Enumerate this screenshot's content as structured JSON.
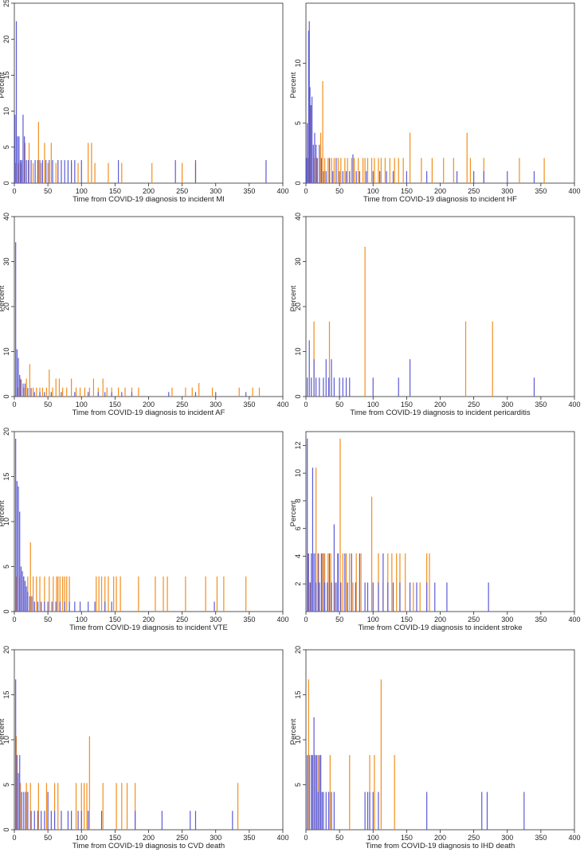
{
  "series_colors": {
    "blue": "#5b5bd6",
    "orange": "#f28e1c"
  },
  "chart_data": [
    {
      "type": "bar",
      "xlabel": "Time from COVID-19 diagnosis to incident MI",
      "ylabel": "Percent",
      "xlim": [
        0,
        400
      ],
      "ylim": [
        0,
        25
      ],
      "xticks": [
        0,
        50,
        100,
        150,
        200,
        250,
        300,
        350,
        400
      ],
      "yticks": [
        0,
        5,
        10,
        15,
        20,
        25
      ],
      "series": [
        {
          "name": "blue",
          "x": [
            1,
            3,
            5,
            7,
            9,
            11,
            13,
            15,
            18,
            21,
            25,
            31,
            35,
            38,
            42,
            47,
            52,
            57,
            65,
            70,
            75,
            80,
            85,
            90,
            100,
            155,
            240,
            270,
            375
          ],
          "values": [
            9.5,
            22.5,
            6.5,
            6.5,
            3.2,
            3.2,
            9.5,
            6.5,
            3.2,
            3.2,
            3.2,
            3.2,
            3.2,
            3.2,
            3.2,
            3.2,
            3.2,
            3.2,
            3.2,
            3.2,
            3.2,
            3.2,
            3.2,
            3.2,
            3.2,
            3.2,
            3.2,
            3.2,
            3.2
          ]
        },
        {
          "name": "orange",
          "x": [
            2,
            6,
            10,
            16,
            22,
            28,
            36,
            40,
            45,
            50,
            55,
            62,
            85,
            95,
            110,
            115,
            120,
            140,
            160,
            205,
            250,
            270
          ],
          "values": [
            2.8,
            2.8,
            2.8,
            5.6,
            5.6,
            2.8,
            8.5,
            2.8,
            5.6,
            2.8,
            5.6,
            2.8,
            2.8,
            2.8,
            5.6,
            5.6,
            2.8,
            2.8,
            2.8,
            2.8,
            2.8,
            2.8
          ]
        }
      ]
    },
    {
      "type": "bar",
      "xlabel": "Time from COVID-19 diagnosis to incident HF",
      "ylabel": "Percent",
      "xlim": [
        0,
        400
      ],
      "ylim": [
        0,
        15
      ],
      "xticks": [
        0,
        50,
        100,
        150,
        200,
        250,
        300,
        350,
        400
      ],
      "yticks": [
        0,
        5,
        10
      ],
      "series": [
        {
          "name": "blue",
          "x": [
            1,
            2,
            4,
            5,
            6,
            7,
            9,
            11,
            13,
            15,
            17,
            20,
            23,
            26,
            30,
            35,
            40,
            45,
            50,
            55,
            60,
            65,
            70,
            75,
            80,
            90,
            100,
            110,
            120,
            130,
            150,
            180,
            225,
            250,
            265,
            300,
            340
          ],
          "values": [
            2.1,
            5,
            12.7,
            13.5,
            8,
            6.5,
            7.2,
            3.2,
            4.2,
            3.2,
            2.1,
            3.2,
            2.1,
            1,
            1,
            2.1,
            1,
            2.1,
            1,
            1,
            1,
            1,
            2.4,
            1,
            1,
            1,
            1,
            1,
            1,
            1,
            1,
            1,
            1,
            1,
            1,
            1,
            1
          ]
        },
        {
          "name": "orange",
          "x": [
            3,
            8,
            12,
            16,
            22,
            25,
            28,
            33,
            38,
            42,
            48,
            52,
            58,
            62,
            68,
            72,
            78,
            85,
            88,
            92,
            98,
            102,
            108,
            112,
            118,
            125,
            132,
            138,
            145,
            155,
            172,
            188,
            205,
            220,
            240,
            245,
            265,
            318,
            355
          ],
          "values": [
            2.1,
            6.5,
            2.1,
            2.1,
            4.2,
            8.5,
            2.1,
            2.1,
            2.1,
            2.1,
            2.1,
            2.1,
            2.1,
            2.1,
            2.1,
            2.1,
            2.1,
            2.1,
            2.1,
            2.1,
            2.1,
            2.1,
            2.1,
            2.1,
            2.1,
            2.1,
            2.1,
            2.1,
            2.1,
            4.2,
            2.1,
            2.1,
            2.1,
            2.1,
            4.2,
            2.1,
            2.1,
            2.1,
            2.1
          ]
        }
      ]
    },
    {
      "type": "bar",
      "xlabel": "Time from COVID-19 diagnosis to incident AF",
      "ylabel": "Percent",
      "xlim": [
        0,
        400
      ],
      "ylim": [
        0,
        40
      ],
      "xticks": [
        0,
        50,
        100,
        150,
        200,
        250,
        300,
        350,
        400
      ],
      "yticks": [
        0,
        10,
        20,
        30,
        40
      ],
      "series": [
        {
          "name": "blue",
          "x": [
            2,
            4,
            6,
            8,
            10,
            13,
            16,
            20,
            25,
            30,
            38,
            45,
            55,
            70,
            90,
            110,
            125,
            135,
            145,
            160,
            175,
            230,
            270,
            300,
            345
          ],
          "values": [
            34.3,
            10.5,
            8.6,
            4.8,
            3.8,
            2.9,
            2.9,
            1.9,
            1.9,
            1,
            1,
            1,
            1,
            1,
            1,
            1,
            1,
            1,
            1,
            1,
            1,
            1,
            1,
            1,
            1
          ]
        },
        {
          "name": "orange",
          "x": [
            5,
            9,
            14,
            18,
            23,
            28,
            33,
            38,
            42,
            48,
            52,
            57,
            62,
            67,
            72,
            78,
            85,
            92,
            98,
            105,
            112,
            118,
            125,
            132,
            138,
            145,
            155,
            165,
            175,
            185,
            235,
            255,
            265,
            275,
            295,
            335,
            355,
            365
          ],
          "values": [
            2,
            4,
            2,
            4,
            7.2,
            2,
            2,
            2,
            2,
            2,
            6,
            2,
            4,
            4,
            2,
            2,
            4,
            2,
            2,
            2,
            2,
            4,
            2,
            4,
            2,
            2,
            2,
            2,
            2,
            2,
            2,
            2,
            2,
            3,
            2,
            2,
            2,
            2
          ]
        }
      ]
    },
    {
      "type": "bar",
      "xlabel": "Time from COVID-19 diagnosis to incident pericarditis",
      "ylabel": "Percent",
      "xlim": [
        0,
        400
      ],
      "ylim": [
        0,
        40
      ],
      "xticks": [
        0,
        50,
        100,
        150,
        200,
        250,
        300,
        350,
        400
      ],
      "yticks": [
        0,
        10,
        20,
        30,
        40
      ],
      "series": [
        {
          "name": "blue",
          "x": [
            2,
            5,
            8,
            12,
            15,
            20,
            26,
            30,
            34,
            38,
            42,
            50,
            55,
            60,
            65,
            100,
            138,
            155,
            340
          ],
          "values": [
            4.2,
            12.5,
            4.2,
            8.3,
            4.2,
            4.2,
            4.2,
            8.3,
            4.2,
            8.3,
            4.2,
            4.2,
            4.2,
            4.2,
            4.2,
            4.2,
            4.2,
            8.3,
            4.2
          ]
        },
        {
          "name": "orange",
          "x": [
            12,
            35,
            88,
            238,
            278
          ],
          "values": [
            16.7,
            16.7,
            33.3,
            16.7,
            16.7
          ]
        }
      ]
    },
    {
      "type": "bar",
      "xlabel": "Time from COVID-19 diagnosis to incident VTE",
      "ylabel": "Percent",
      "xlim": [
        0,
        400
      ],
      "ylim": [
        0,
        20
      ],
      "xticks": [
        0,
        50,
        100,
        150,
        200,
        250,
        300,
        350,
        400
      ],
      "yticks": [
        0,
        5,
        10,
        15,
        20
      ],
      "series": [
        {
          "name": "blue",
          "x": [
            2,
            4,
            6,
            8,
            10,
            12,
            14,
            16,
            18,
            20,
            23,
            26,
            30,
            35,
            40,
            45,
            50,
            56,
            62,
            68,
            75,
            82,
            90,
            98,
            110,
            120,
            135,
            145,
            298
          ],
          "values": [
            19.2,
            14.5,
            13.9,
            11.1,
            5,
            4.5,
            3.9,
            3.4,
            2.8,
            2.2,
            1.7,
            1.7,
            1.1,
            1.1,
            1.1,
            1.1,
            1.1,
            1.1,
            1.1,
            1.1,
            1.1,
            1.1,
            1.1,
            1.1,
            1.1,
            1.1,
            1.1,
            1.1,
            1.1
          ]
        },
        {
          "name": "orange",
          "x": [
            3,
            8,
            14,
            20,
            24,
            28,
            33,
            38,
            45,
            52,
            58,
            63,
            65,
            68,
            72,
            75,
            78,
            82,
            122,
            126,
            130,
            135,
            140,
            148,
            152,
            158,
            185,
            210,
            222,
            228,
            255,
            285,
            302,
            312,
            345
          ],
          "values": [
            3.9,
            3.9,
            3.9,
            3.9,
            7.7,
            3.9,
            3.9,
            3.9,
            3.9,
            3.9,
            3.9,
            3.9,
            3.9,
            3.9,
            3.9,
            3.9,
            3.9,
            3.9,
            3.9,
            3.9,
            3.9,
            3.9,
            3.9,
            3.9,
            3.9,
            3.9,
            3.9,
            3.9,
            3.9,
            3.9,
            3.9,
            3.9,
            3.9,
            3.9,
            3.9
          ]
        }
      ]
    },
    {
      "type": "bar",
      "xlabel": "Time from COVID-19 diagnosis to incident stroke",
      "ylabel": "Percent",
      "xlim": [
        0,
        400
      ],
      "ylim": [
        0,
        13
      ],
      "xticks": [
        0,
        50,
        100,
        150,
        200,
        250,
        300,
        350,
        400
      ],
      "yticks": [
        2,
        4,
        6,
        8,
        10,
        12
      ],
      "series": [
        {
          "name": "blue",
          "x": [
            2,
            4,
            6,
            8,
            10,
            13,
            15,
            18,
            20,
            23,
            26,
            28,
            32,
            35,
            38,
            42,
            45,
            48,
            52,
            58,
            62,
            68,
            74,
            80,
            88,
            92,
            100,
            108,
            115,
            122,
            130,
            140,
            155,
            165,
            180,
            192,
            210,
            272
          ],
          "values": [
            12.5,
            4.2,
            2.1,
            4.2,
            10.4,
            4.2,
            2.1,
            4.2,
            2.1,
            4.2,
            4.2,
            2.1,
            2.1,
            4.2,
            2.1,
            6.3,
            2.1,
            4.2,
            2.1,
            4.2,
            2.1,
            4.2,
            2.1,
            4.2,
            2.1,
            2.1,
            2.1,
            2.1,
            4.2,
            2.1,
            2.1,
            2.1,
            2.1,
            2.1,
            2.1,
            2.1,
            2.1,
            2.1
          ]
        },
        {
          "name": "orange",
          "x": [
            3,
            7,
            11,
            15,
            19,
            24,
            28,
            33,
            37,
            43,
            47,
            51,
            55,
            60,
            65,
            70,
            75,
            82,
            98,
            108,
            115,
            122,
            128,
            135,
            140,
            148,
            160,
            170,
            180,
            184
          ],
          "values": [
            4.2,
            2.1,
            4.2,
            10.4,
            4.2,
            4.2,
            4.2,
            4.2,
            4.2,
            2.1,
            4.2,
            12.5,
            4.2,
            4.2,
            4.2,
            2.1,
            4.2,
            4.2,
            8.3,
            4.2,
            2.1,
            4.2,
            4.2,
            4.2,
            4.2,
            4.2,
            2.1,
            2.1,
            4.2,
            4.2
          ]
        }
      ]
    },
    {
      "type": "bar",
      "xlabel": "Time from COVID-19 diagnosis to CVD death",
      "ylabel": "Percent",
      "xlim": [
        0,
        400
      ],
      "ylim": [
        0,
        20
      ],
      "xticks": [
        0,
        50,
        100,
        150,
        200,
        250,
        300,
        350,
        400
      ],
      "yticks": [
        0,
        5,
        10,
        15,
        20
      ],
      "series": [
        {
          "name": "blue",
          "x": [
            2,
            4,
            6,
            8,
            11,
            14,
            17,
            20,
            25,
            30,
            35,
            40,
            45,
            50,
            55,
            60,
            70,
            80,
            85,
            95,
            100,
            110,
            130,
            180,
            220,
            262,
            270,
            325
          ],
          "values": [
            16.7,
            8.3,
            6.3,
            8.3,
            4.2,
            4.2,
            4.2,
            4.2,
            2.1,
            2.1,
            2.1,
            2.1,
            2.1,
            4.2,
            2.1,
            2.1,
            2.1,
            2.1,
            2.1,
            2.1,
            2.1,
            2.1,
            2.1,
            2.1,
            2.1,
            2.1,
            2.1,
            2.1
          ]
        },
        {
          "name": "orange",
          "x": [
            3,
            9,
            18,
            24,
            36,
            48,
            60,
            65,
            92,
            100,
            104,
            108,
            112,
            132,
            152,
            160,
            168,
            180,
            333
          ],
          "values": [
            10.4,
            5.2,
            5.2,
            5.2,
            5.2,
            5.2,
            5.2,
            5.2,
            5.2,
            5.2,
            5.2,
            5.2,
            10.4,
            5.2,
            5.2,
            5.2,
            5.2,
            5.2,
            5.2
          ]
        }
      ]
    },
    {
      "type": "bar",
      "xlabel": "Time from COVID-19 diagnosis to IHD death",
      "ylabel": "Percent",
      "xlim": [
        0,
        400
      ],
      "ylim": [
        0,
        20
      ],
      "xticks": [
        0,
        50,
        100,
        150,
        200,
        250,
        300,
        350,
        400
      ],
      "yticks": [
        5,
        10,
        15,
        20
      ],
      "series": [
        {
          "name": "blue",
          "x": [
            2,
            5,
            8,
            10,
            12,
            14,
            16,
            18,
            20,
            22,
            24,
            26,
            30,
            34,
            38,
            42,
            88,
            92,
            95,
            100,
            108,
            180,
            262,
            270,
            325
          ],
          "values": [
            8.3,
            8.3,
            8.3,
            8.3,
            12.5,
            8.3,
            8.3,
            4.2,
            8.3,
            8.3,
            4.2,
            4.2,
            4.2,
            4.2,
            4.2,
            4.2,
            4.2,
            4.2,
            4.2,
            4.2,
            4.2,
            4.2,
            4.2,
            4.2,
            4.2
          ]
        },
        {
          "name": "orange",
          "x": [
            4,
            8,
            12,
            18,
            22,
            36,
            65,
            95,
            102,
            112,
            132
          ],
          "values": [
            16.7,
            8.3,
            8.3,
            8.3,
            8.3,
            8.3,
            8.3,
            8.3,
            8.3,
            16.7,
            8.3
          ]
        }
      ]
    }
  ]
}
